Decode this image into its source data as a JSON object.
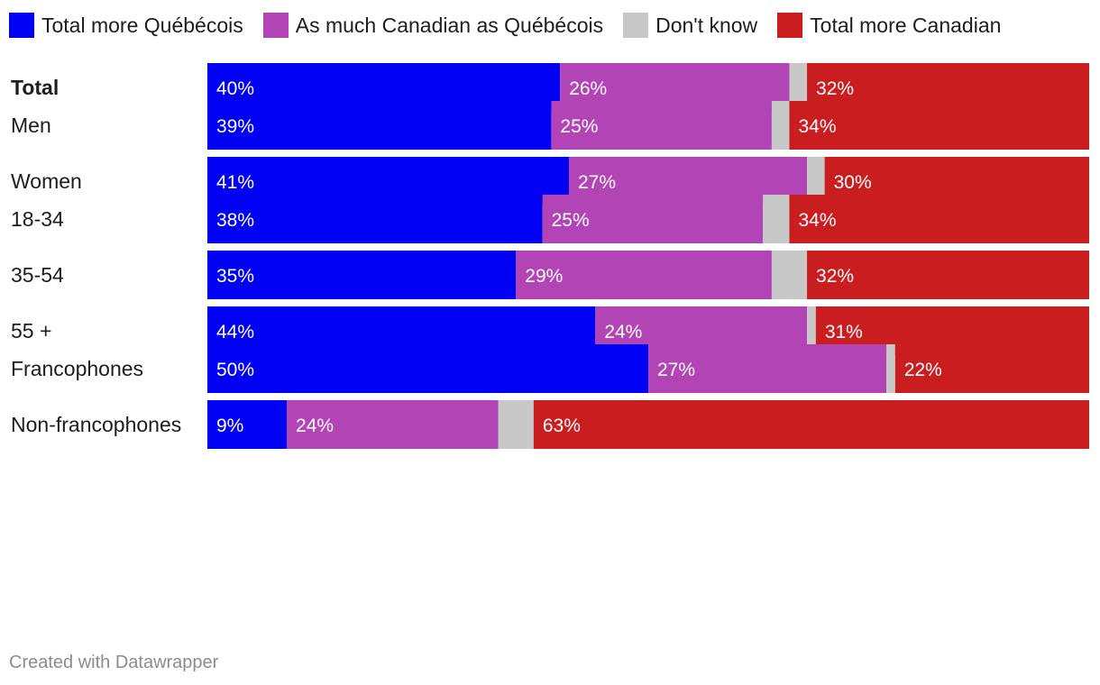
{
  "chart_data": {
    "type": "bar",
    "orientation": "horizontal",
    "stacked": true,
    "series": [
      {
        "name": "Total more Québécois",
        "color": "#0000f5"
      },
      {
        "name": "As much Canadian as Québécois",
        "color": "#b244b6"
      },
      {
        "name": "Don't know",
        "color": "#c8c8c8"
      },
      {
        "name": "Total more Canadian",
        "color": "#c91d1f"
      }
    ],
    "rows": [
      {
        "label": "Total",
        "bold": true,
        "values": [
          40,
          26,
          2,
          32
        ],
        "labels": [
          "40%",
          "26%",
          "",
          "32%"
        ]
      },
      {
        "label": "Men",
        "bold": false,
        "values": [
          39,
          25,
          2,
          34
        ],
        "labels": [
          "39%",
          "25%",
          "",
          "34%"
        ]
      },
      {
        "label": "Women",
        "bold": false,
        "values": [
          41,
          27,
          2,
          30
        ],
        "labels": [
          "41%",
          "27%",
          "",
          "30%"
        ]
      },
      {
        "label": "18-34",
        "bold": false,
        "values": [
          38,
          25,
          3,
          34
        ],
        "labels": [
          "38%",
          "25%",
          "",
          "34%"
        ]
      },
      {
        "label": "35-54",
        "bold": false,
        "values": [
          35,
          29,
          4,
          32
        ],
        "labels": [
          "35%",
          "29%",
          "",
          "32%"
        ]
      },
      {
        "label": "55 +",
        "bold": false,
        "values": [
          44,
          24,
          1,
          31
        ],
        "labels": [
          "44%",
          "24%",
          "",
          "31%"
        ]
      },
      {
        "label": "Francophones",
        "bold": false,
        "values": [
          50,
          27,
          1,
          22
        ],
        "labels": [
          "50%",
          "27%",
          "",
          "22%"
        ]
      },
      {
        "label": "Non-francophones",
        "bold": false,
        "values": [
          9,
          24,
          4,
          63
        ],
        "labels": [
          "9%",
          "24%",
          "",
          "63%"
        ]
      }
    ],
    "groups": [
      [
        0
      ],
      [
        1,
        2
      ],
      [
        3,
        4,
        5
      ],
      [
        6,
        7
      ]
    ],
    "xlim": [
      0,
      100
    ]
  },
  "footer": "Created with Datawrapper"
}
